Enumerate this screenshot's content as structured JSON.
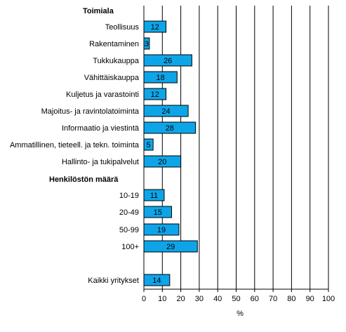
{
  "chart_data": {
    "type": "bar",
    "orientation": "horizontal",
    "bar_color": "#0ea5e8",
    "xlabel": "%",
    "xlim": [
      0,
      100
    ],
    "xticks": [
      0,
      10,
      20,
      30,
      40,
      50,
      60,
      70,
      80,
      90,
      100
    ],
    "grid": "vertical lines",
    "groups": [
      {
        "header": "Toimiala",
        "categories": [
          "Teollisuus",
          "Rakentaminen",
          "Tukkukauppa",
          "Vähittäiskauppa",
          "Kuljetus ja varastointi",
          "Majoitus- ja ravintolatoiminta",
          "Informaatio ja viestintä",
          "Ammatillinen, tieteell. ja tekn. toiminta",
          "Hallinto- ja tukipalvelut"
        ],
        "values": [
          12,
          3,
          26,
          18,
          12,
          24,
          28,
          5,
          20
        ]
      },
      {
        "header": "Henkilöstön määrä",
        "categories": [
          "10-19",
          "20-49",
          "50-99",
          "100+"
        ],
        "values": [
          11,
          15,
          19,
          29
        ]
      },
      {
        "header": "",
        "categories": [
          "Kaikki yritykset"
        ],
        "values": [
          14
        ]
      }
    ]
  }
}
